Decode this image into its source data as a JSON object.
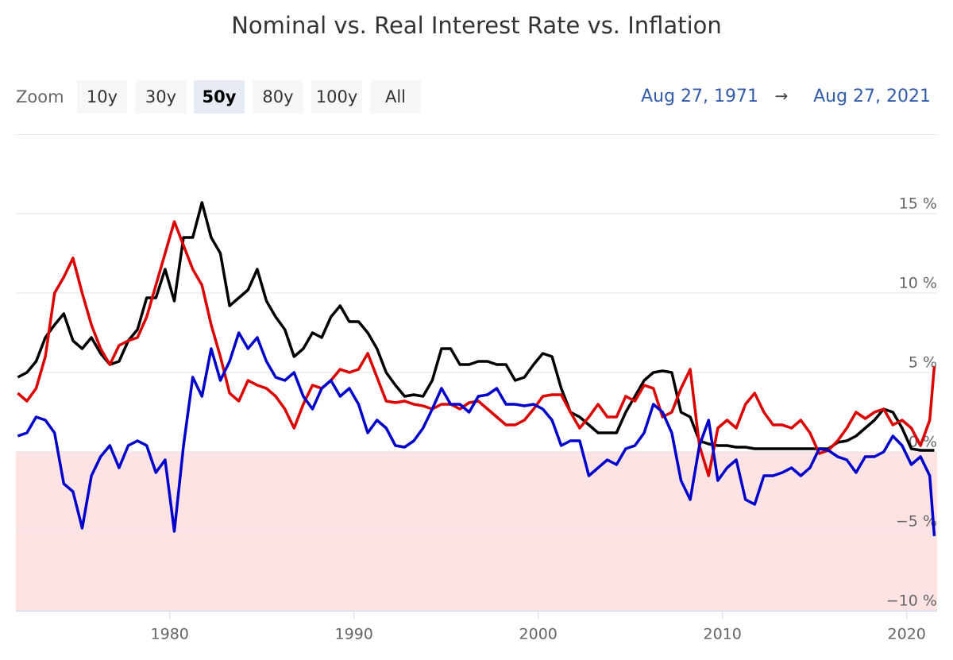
{
  "chart_data": {
    "type": "line",
    "title": "Nominal vs. Real Interest Rate vs. Inflation",
    "x": [
      1971.75,
      1972.25,
      1972.75,
      1973.25,
      1973.75,
      1974.25,
      1974.75,
      1975.25,
      1975.75,
      1976.25,
      1976.75,
      1977.25,
      1977.75,
      1978.25,
      1978.75,
      1979.25,
      1979.75,
      1980.25,
      1980.75,
      1981.25,
      1981.75,
      1982.25,
      1982.75,
      1983.25,
      1983.75,
      1984.25,
      1984.75,
      1985.25,
      1985.75,
      1986.25,
      1986.75,
      1987.25,
      1987.75,
      1988.25,
      1988.75,
      1989.25,
      1989.75,
      1990.25,
      1990.75,
      1991.25,
      1991.75,
      1992.25,
      1992.75,
      1993.25,
      1993.75,
      1994.25,
      1994.75,
      1995.25,
      1995.75,
      1996.25,
      1996.75,
      1997.25,
      1997.75,
      1998.25,
      1998.75,
      1999.25,
      1999.75,
      2000.25,
      2000.75,
      2001.25,
      2001.75,
      2002.25,
      2002.75,
      2003.25,
      2003.75,
      2004.25,
      2004.75,
      2005.25,
      2005.75,
      2006.25,
      2006.75,
      2007.25,
      2007.75,
      2008.25,
      2008.75,
      2009.25,
      2009.75,
      2010.25,
      2010.75,
      2011.25,
      2011.75,
      2012.25,
      2012.75,
      2013.25,
      2013.75,
      2014.25,
      2014.75,
      2015.25,
      2015.75,
      2016.25,
      2016.75,
      2017.25,
      2017.75,
      2018.25,
      2018.75,
      2019.25,
      2019.75,
      2020.25,
      2020.75,
      2021.25,
      2021.5
    ],
    "series": [
      {
        "color": "#000000",
        "values": [
          4.7,
          5.0,
          5.7,
          7.2,
          8.0,
          8.7,
          7.0,
          6.5,
          7.2,
          6.2,
          5.5,
          5.7,
          7.0,
          7.7,
          9.7,
          9.7,
          11.5,
          9.5,
          13.5,
          13.5,
          15.7,
          13.5,
          12.5,
          9.2,
          9.7,
          10.2,
          11.5,
          9.5,
          8.5,
          7.7,
          6.0,
          6.5,
          7.5,
          7.2,
          8.5,
          9.2,
          8.2,
          8.2,
          7.5,
          6.5,
          5.0,
          4.2,
          3.5,
          3.6,
          3.5,
          4.5,
          6.5,
          6.5,
          5.5,
          5.5,
          5.7,
          5.7,
          5.5,
          5.5,
          4.5,
          4.7,
          5.5,
          6.2,
          6.0,
          4.0,
          2.5,
          2.2,
          1.7,
          1.2,
          1.2,
          1.2,
          2.5,
          3.5,
          4.5,
          5.0,
          5.1,
          5.0,
          2.5,
          2.2,
          0.7,
          0.5,
          0.4,
          0.4,
          0.3,
          0.3,
          0.2,
          0.2,
          0.2,
          0.2,
          0.2,
          0.2,
          0.2,
          0.2,
          0.2,
          0.6,
          0.7,
          1.0,
          1.5,
          2.0,
          2.7,
          2.5,
          1.5,
          0.2,
          0.1,
          0.1,
          0.1
        ]
      },
      {
        "color": "#dd0000",
        "values": [
          3.7,
          3.2,
          4.0,
          6.0,
          10.0,
          11.0,
          12.2,
          10.0,
          8.0,
          6.5,
          5.5,
          6.7,
          7.0,
          7.2,
          8.5,
          10.5,
          12.5,
          14.5,
          13.0,
          11.5,
          10.5,
          8.0,
          6.0,
          3.7,
          3.2,
          4.5,
          4.2,
          4.0,
          3.5,
          2.7,
          1.5,
          3.0,
          4.2,
          4.0,
          4.5,
          5.2,
          5.0,
          5.2,
          6.2,
          4.7,
          3.2,
          3.1,
          3.2,
          3.0,
          2.9,
          2.7,
          3.0,
          3.0,
          2.7,
          3.1,
          3.2,
          2.7,
          2.2,
          1.7,
          1.7,
          2.0,
          2.7,
          3.5,
          3.6,
          3.6,
          2.5,
          1.5,
          2.2,
          3.0,
          2.2,
          2.2,
          3.5,
          3.2,
          4.2,
          4.0,
          2.2,
          2.5,
          4.0,
          5.2,
          0.4,
          -1.5,
          1.5,
          2.0,
          1.5,
          3.0,
          3.7,
          2.5,
          1.7,
          1.7,
          1.5,
          2.0,
          1.2,
          -0.1,
          0.1,
          0.7,
          1.5,
          2.5,
          2.1,
          2.5,
          2.7,
          1.7,
          2.0,
          1.5,
          0.4,
          2.0,
          5.4
        ]
      },
      {
        "color": "#0000cc",
        "values": [
          1.0,
          1.2,
          2.2,
          2.0,
          1.2,
          -2.0,
          -2.5,
          -4.8,
          -1.5,
          -0.3,
          0.4,
          -1.0,
          0.4,
          0.7,
          0.4,
          -1.3,
          -0.5,
          -5.0,
          0.4,
          4.7,
          3.5,
          6.5,
          4.5,
          5.7,
          7.5,
          6.5,
          7.2,
          5.7,
          4.7,
          4.5,
          5.0,
          3.5,
          2.7,
          4.0,
          4.5,
          3.5,
          4.0,
          3.0,
          1.2,
          2.0,
          1.5,
          0.4,
          0.3,
          0.7,
          1.5,
          2.7,
          4.0,
          3.0,
          3.0,
          2.5,
          3.5,
          3.6,
          4.0,
          3.0,
          3.0,
          2.9,
          3.0,
          2.7,
          2.0,
          0.4,
          0.7,
          0.7,
          -1.5,
          -1.0,
          -0.5,
          -0.8,
          0.2,
          0.4,
          1.2,
          3.0,
          2.5,
          1.2,
          -1.8,
          -3.0,
          0.4,
          2.0,
          -1.8,
          -1.0,
          -0.5,
          -3.0,
          -3.3,
          -1.5,
          -1.5,
          -1.3,
          -1.0,
          -1.5,
          -1.0,
          0.2,
          0.1,
          -0.3,
          -0.5,
          -1.3,
          -0.3,
          -0.3,
          0.0,
          1.0,
          0.4,
          -0.8,
          -0.3,
          -1.5,
          -5.3
        ]
      }
    ],
    "xlim": [
      1971.65,
      2021.65
    ],
    "xticks": [
      1980,
      1990,
      2000,
      2010,
      2020
    ],
    "ylim": [
      -10,
      20
    ],
    "yticks": [
      {
        "value": -10,
        "label": "−10 %"
      },
      {
        "value": -5,
        "label": "−5 %"
      },
      {
        "value": 0,
        "label": "0 %"
      },
      {
        "value": 5,
        "label": "5 %"
      },
      {
        "value": 10,
        "label": "10 %"
      },
      {
        "value": 15,
        "label": "15 %"
      }
    ],
    "grid": true,
    "negative_band_color": "#fde3e3"
  },
  "range_selector": {
    "label": "Zoom",
    "buttons": [
      "10y",
      "30y",
      "50y",
      "80y",
      "100y",
      "All"
    ],
    "selected": 2
  },
  "date_range": {
    "from": "Aug 27, 1971",
    "arrow": "→",
    "to": "Aug 27, 2021"
  }
}
